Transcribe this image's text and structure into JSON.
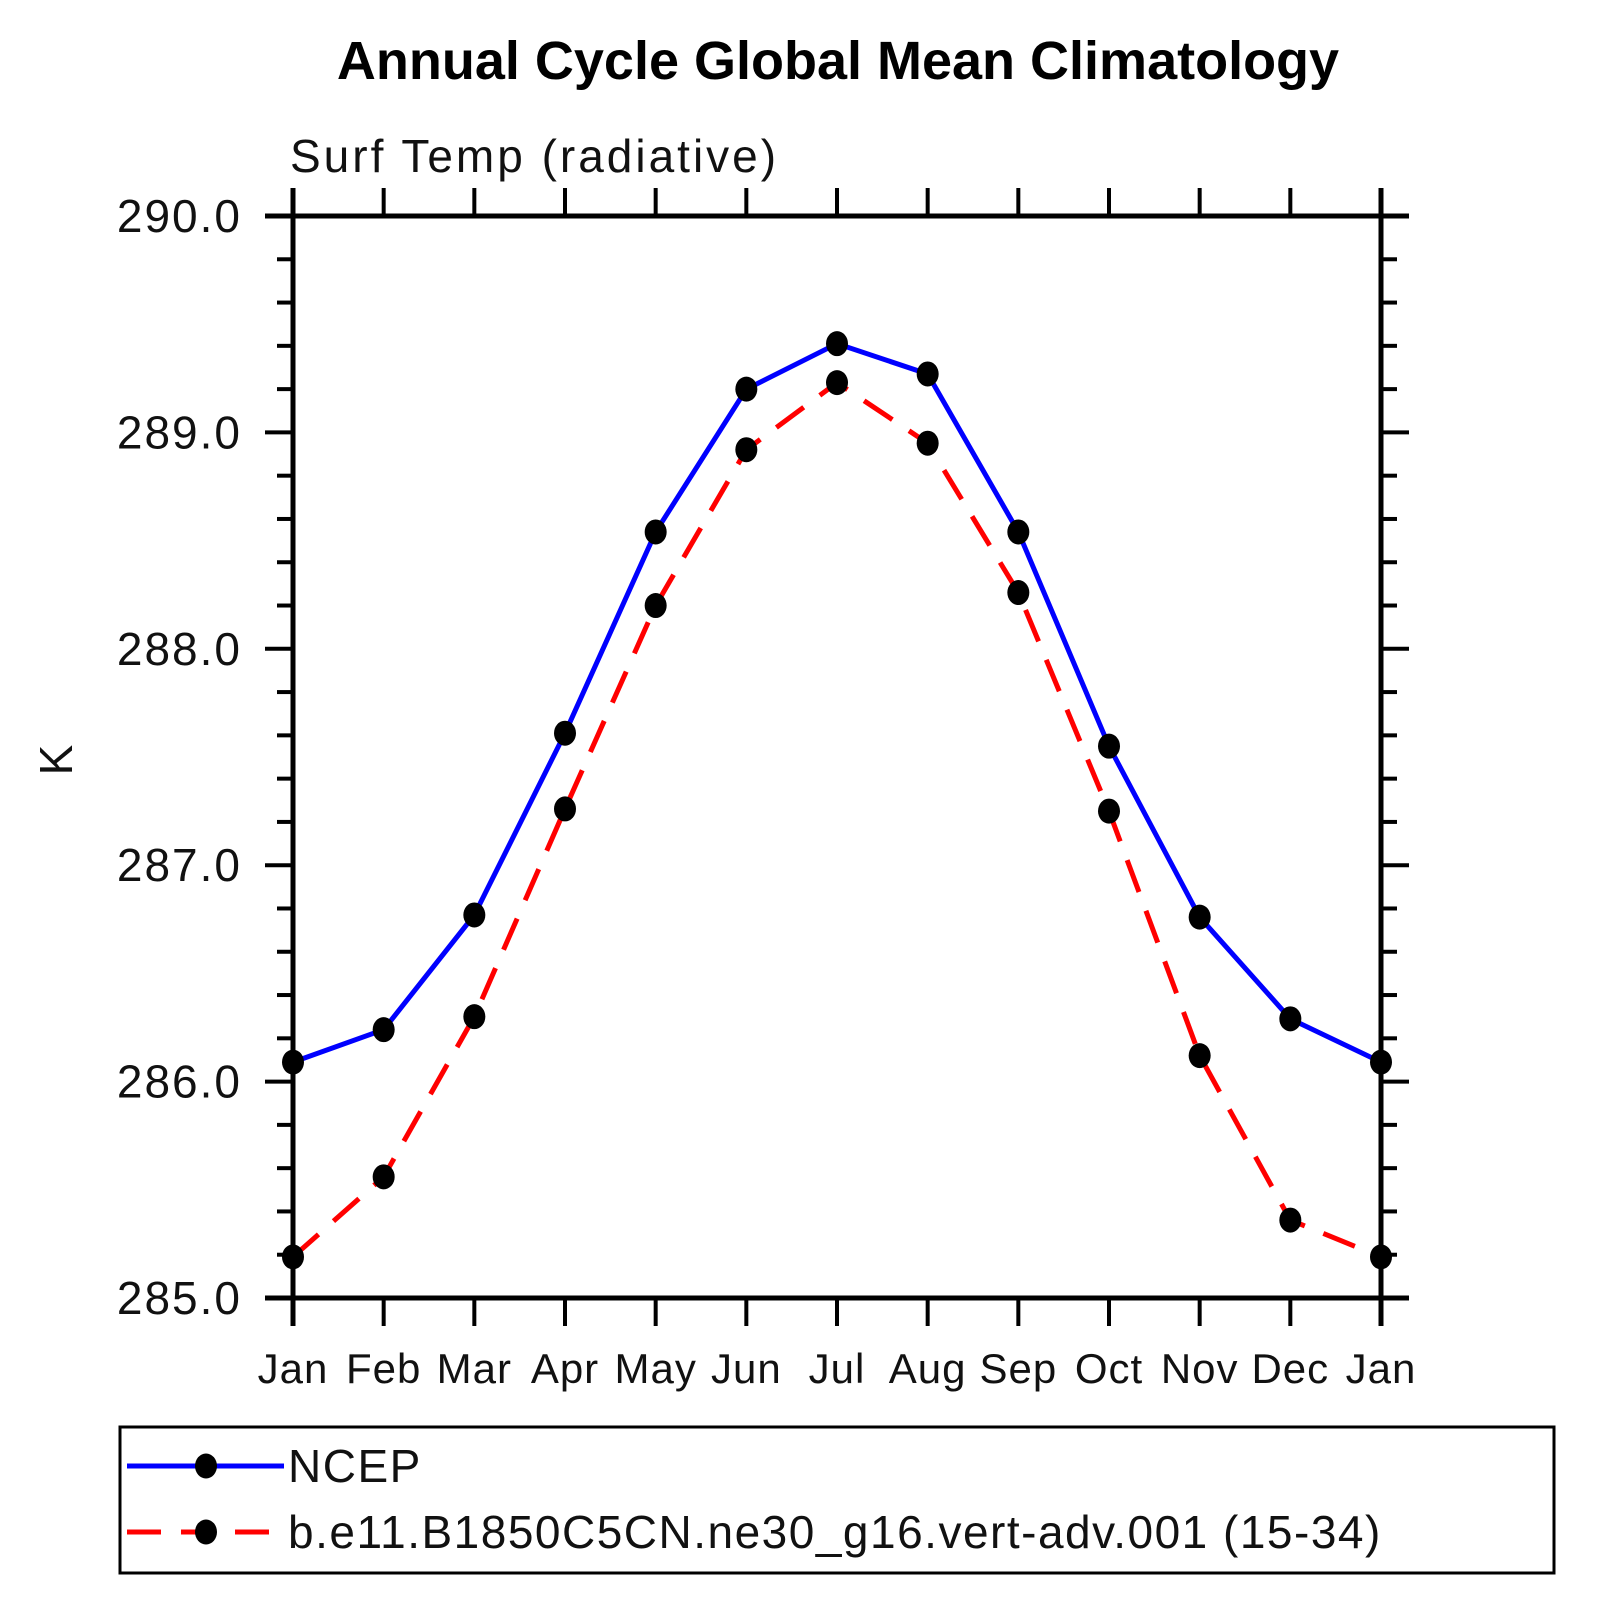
{
  "page": {
    "background": "#ffffff",
    "axis_color": "#000000",
    "marker_color": "#000000"
  },
  "chart_data": {
    "type": "line",
    "title": "Annual Cycle Global Mean Climatology",
    "subtitle": "Surf Temp (radiative)",
    "ylabel": "K",
    "xlabel": "",
    "categories": [
      "Jan",
      "Feb",
      "Mar",
      "Apr",
      "May",
      "Jun",
      "Jul",
      "Aug",
      "Sep",
      "Oct",
      "Nov",
      "Dec",
      "Jan"
    ],
    "ylim": [
      285.0,
      290.0
    ],
    "ytick_major_step": 1.0,
    "ytick_minor_step": 0.2,
    "ytick_labels": [
      "285.0",
      "286.0",
      "287.0",
      "288.0",
      "289.0",
      "290.0"
    ],
    "grid": false,
    "legend_position": "bottom-left",
    "series": [
      {
        "name": "NCEP",
        "color": "#0000ff",
        "line_style": "solid",
        "marker": "filled-circle",
        "marker_color": "#000000",
        "values": [
          286.09,
          286.24,
          286.77,
          287.61,
          288.54,
          289.2,
          289.41,
          289.27,
          288.54,
          287.55,
          286.76,
          286.29,
          286.09
        ]
      },
      {
        "name": "b.e11.B1850C5CN.ne30_g16.vert-adv.001 (15-34)",
        "color": "#ff0000",
        "line_style": "dashed",
        "marker": "filled-circle",
        "marker_color": "#000000",
        "values": [
          285.19,
          285.56,
          286.3,
          287.26,
          288.2,
          288.92,
          289.23,
          288.95,
          288.26,
          287.25,
          286.12,
          285.36,
          285.19
        ]
      }
    ]
  }
}
